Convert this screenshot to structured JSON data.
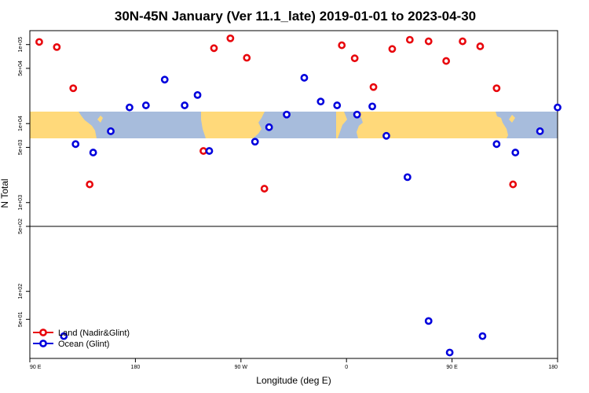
{
  "chart_data": {
    "type": "scatter",
    "title": "30N-45N January (Ver 11.1_late)   2019-01-01 to 2023-04-30",
    "xlabel": "Longitude (deg E)",
    "ylabel": "N Total",
    "x_ticks": [
      {
        "lon": 90,
        "label": "90 E"
      },
      {
        "lon": 180,
        "label": "180"
      },
      {
        "lon": 270,
        "label": "90 W"
      },
      {
        "lon": 360,
        "label": "0"
      },
      {
        "lon": 450,
        "label": "90 E"
      },
      {
        "lon": 540,
        "label": "180"
      }
    ],
    "upper_y_ticks": [
      {
        "value": 500,
        "label": "5e+02"
      },
      {
        "value": 1000,
        "label": "1e+03"
      },
      {
        "value": 5000,
        "label": "5e+03"
      },
      {
        "value": 10000,
        "label": "1e+04"
      },
      {
        "value": 50000,
        "label": "5e+04"
      },
      {
        "value": 100000,
        "label": "1e+05"
      }
    ],
    "lower_y_ticks": [
      {
        "value": 50,
        "label": "5e+01"
      },
      {
        "value": 100,
        "label": "1e+02"
      }
    ],
    "map_band": {
      "ocean_color": "#a7bcdc",
      "land_color": "#ffd97a"
    },
    "legend": {
      "position": "bottom-left",
      "entries": [
        {
          "label": "Land (Nadir&Glint)",
          "color": "#e8070d"
        },
        {
          "label": "Ocean (Glint)",
          "color": "#0000dd"
        }
      ]
    },
    "series": [
      {
        "name": "Land (Nadir&Glint)",
        "color": "#e8070d",
        "points": [
          {
            "lon": 98,
            "value": 108000
          },
          {
            "lon": 113,
            "value": 93000
          },
          {
            "lon": 127,
            "value": 28000
          },
          {
            "lon": 141,
            "value": 1700
          },
          {
            "lon": 238,
            "value": 4500
          },
          {
            "lon": 247,
            "value": 90000
          },
          {
            "lon": 261,
            "value": 120000
          },
          {
            "lon": 275,
            "value": 68000
          },
          {
            "lon": 290,
            "value": 1500
          },
          {
            "lon": 356,
            "value": 98000
          },
          {
            "lon": 367,
            "value": 67000
          },
          {
            "lon": 383,
            "value": 29000
          },
          {
            "lon": 399,
            "value": 88000
          },
          {
            "lon": 414,
            "value": 115000
          },
          {
            "lon": 430,
            "value": 110000
          },
          {
            "lon": 445,
            "value": 62000
          },
          {
            "lon": 459,
            "value": 110000
          },
          {
            "lon": 474,
            "value": 95000
          },
          {
            "lon": 488,
            "value": 28000
          },
          {
            "lon": 502,
            "value": 1700
          }
        ]
      },
      {
        "name": "Ocean (Glint)",
        "color": "#0000dd",
        "points": [
          {
            "lon": 119,
            "value": 33
          },
          {
            "lon": 129,
            "value": 5500
          },
          {
            "lon": 144,
            "value": 4300
          },
          {
            "lon": 159,
            "value": 8000
          },
          {
            "lon": 175,
            "value": 16000
          },
          {
            "lon": 189,
            "value": 17000
          },
          {
            "lon": 205,
            "value": 36000
          },
          {
            "lon": 222,
            "value": 17000
          },
          {
            "lon": 233,
            "value": 23000
          },
          {
            "lon": 243,
            "value": 4500
          },
          {
            "lon": 282,
            "value": 5900
          },
          {
            "lon": 294,
            "value": 9000
          },
          {
            "lon": 309,
            "value": 13000
          },
          {
            "lon": 324,
            "value": 38000
          },
          {
            "lon": 338,
            "value": 19000
          },
          {
            "lon": 352,
            "value": 17000
          },
          {
            "lon": 369,
            "value": 13000
          },
          {
            "lon": 382,
            "value": 16500
          },
          {
            "lon": 394,
            "value": 7000
          },
          {
            "lon": 412,
            "value": 2100
          },
          {
            "lon": 430,
            "value": 48
          },
          {
            "lon": 448,
            "value": 22
          },
          {
            "lon": 476,
            "value": 33
          },
          {
            "lon": 488,
            "value": 5500
          },
          {
            "lon": 504,
            "value": 4300
          },
          {
            "lon": 525,
            "value": 8000
          },
          {
            "lon": 540,
            "value": 16000
          }
        ]
      }
    ]
  }
}
